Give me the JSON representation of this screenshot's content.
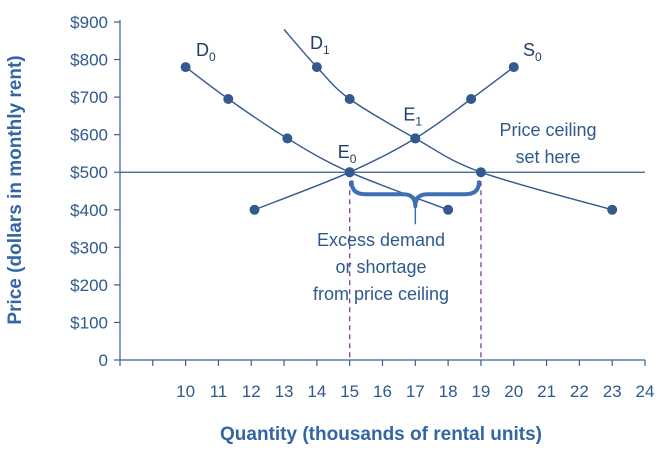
{
  "chart_data": {
    "type": "line",
    "title": "",
    "xlabel": "Quantity (thousands of rental units)",
    "ylabel": "Price (dollars in monthly rent)",
    "xlim": [
      8,
      24
    ],
    "ylim": [
      0,
      900
    ],
    "x_ticks": [
      10,
      11,
      12,
      13,
      14,
      15,
      16,
      17,
      18,
      19,
      20,
      21,
      22,
      23,
      24
    ],
    "y_ticks": [
      0,
      100,
      200,
      300,
      400,
      500,
      600,
      700,
      800,
      900
    ],
    "y_tick_labels": [
      "0",
      "$100",
      "$200",
      "$300",
      "$400",
      "$500",
      "$600",
      "$700",
      "$800",
      "$900"
    ],
    "series": [
      {
        "name": "D0",
        "label_main": "D",
        "label_sub": "0",
        "color": "#34598f",
        "points": [
          [
            10,
            780
          ],
          [
            11.3,
            695
          ],
          [
            13.1,
            590
          ],
          [
            15,
            500
          ],
          [
            18,
            400
          ]
        ]
      },
      {
        "name": "D1",
        "label_main": "D",
        "label_sub": "1",
        "color": "#34598f",
        "points": [
          [
            14,
            780
          ],
          [
            15,
            695
          ],
          [
            17,
            590
          ],
          [
            19,
            500
          ],
          [
            23,
            400
          ]
        ],
        "curve_start": [
          13,
          880
        ]
      },
      {
        "name": "S0",
        "label_main": "S",
        "label_sub": "0",
        "color": "#34598f",
        "points": [
          [
            12.1,
            400
          ],
          [
            15,
            500
          ],
          [
            17,
            590
          ],
          [
            18.7,
            695
          ],
          [
            20,
            780
          ]
        ]
      }
    ],
    "price_ceiling": 500,
    "equilibria": [
      {
        "label_main": "E",
        "label_sub": "0",
        "x": 15,
        "y": 500
      },
      {
        "label_main": "E",
        "label_sub": "1",
        "x": 17,
        "y": 590
      }
    ],
    "shortage_range": [
      15,
      19
    ],
    "annotations": {
      "ceiling_line1": "Price ceiling",
      "ceiling_line2": "set here",
      "shortage_line1": "Excess demand",
      "shortage_line2": "or shortage",
      "shortage_line3": "from price ceiling"
    },
    "colors": {
      "axis": "#3a5f94",
      "curve": "#34598f",
      "brace": "#3d6fb3",
      "dashed": "#7b3f98"
    }
  }
}
